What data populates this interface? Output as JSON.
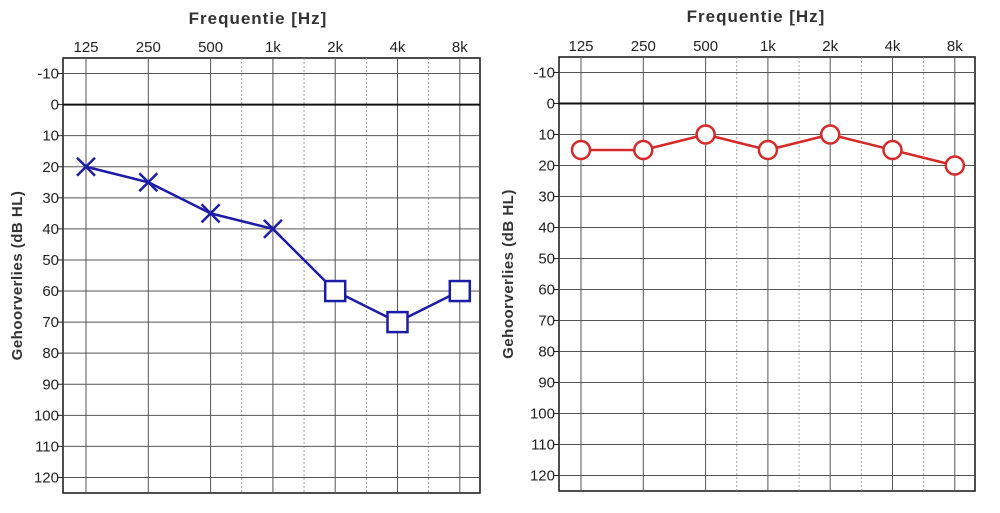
{
  "chart_data": [
    {
      "type": "line",
      "title": "Frequentie [Hz]",
      "ylabel": "Gehoorverlies (dB HL)",
      "categories": [
        "125",
        "250",
        "500",
        "1k",
        "2k",
        "4k",
        "8k"
      ],
      "y_ticks": [
        "-10",
        "0",
        "10",
        "20",
        "30",
        "40",
        "50",
        "60",
        "70",
        "80",
        "90",
        "100",
        "110",
        "120"
      ],
      "ylim": [
        -15,
        125
      ],
      "y_inverted": true,
      "grid": true,
      "series": [
        {
          "values": [
            20,
            25,
            35,
            40,
            60,
            70,
            60
          ],
          "markers": [
            "x",
            "x",
            "x",
            "x",
            "square",
            "square",
            "square"
          ],
          "color": "#1c1ca6"
        }
      ]
    },
    {
      "type": "line",
      "title": "Frequentie [Hz]",
      "ylabel": "Gehoorverlies (dB HL)",
      "categories": [
        "125",
        "250",
        "500",
        "1k",
        "2k",
        "4k",
        "8k"
      ],
      "y_ticks": [
        "-10",
        "0",
        "10",
        "20",
        "30",
        "40",
        "50",
        "60",
        "70",
        "80",
        "90",
        "100",
        "110",
        "120"
      ],
      "ylim": [
        -15,
        125
      ],
      "y_inverted": true,
      "grid": true,
      "series": [
        {
          "values": [
            15,
            15,
            10,
            15,
            10,
            15,
            20
          ],
          "markers": [
            "circle",
            "circle",
            "circle",
            "circle",
            "circle",
            "circle",
            "circle"
          ],
          "color": "#d42a2a"
        }
      ]
    }
  ]
}
